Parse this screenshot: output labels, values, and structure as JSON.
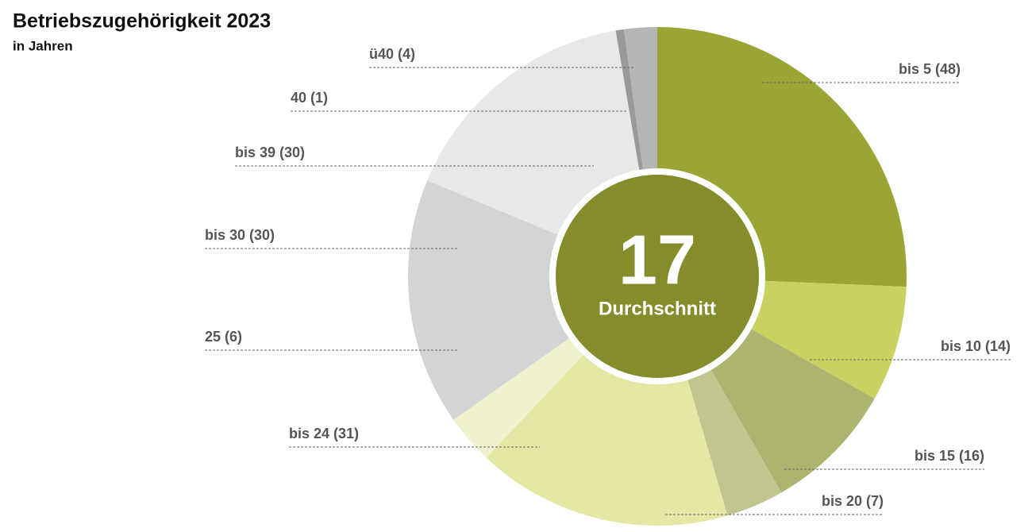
{
  "chart_data": {
    "type": "donut",
    "title": "Betriebszugehörigkeit 2023",
    "subtitle": "in Jahren",
    "value_labels": [
      "bis 5 (48)",
      "bis 10 (14)",
      "bis 15 (16)",
      "bis 20 (7)",
      "bis 24 (31)",
      "25 (6)",
      "bis 30 (30)",
      "bis 39 (30)",
      "40 (1)",
      "ü40 (4)"
    ],
    "values": [
      48,
      14,
      16,
      7,
      31,
      6,
      30,
      30,
      1,
      4
    ],
    "colors": [
      "#9aa535",
      "#c9d161",
      "#aeb470",
      "#c3c591",
      "#e5e7a5",
      "#eff2cc",
      "#d4d4d4",
      "#e8e8e8",
      "#999999",
      "#b5b5b5"
    ],
    "center_value": 17,
    "center_label": "Durchschnitt"
  }
}
